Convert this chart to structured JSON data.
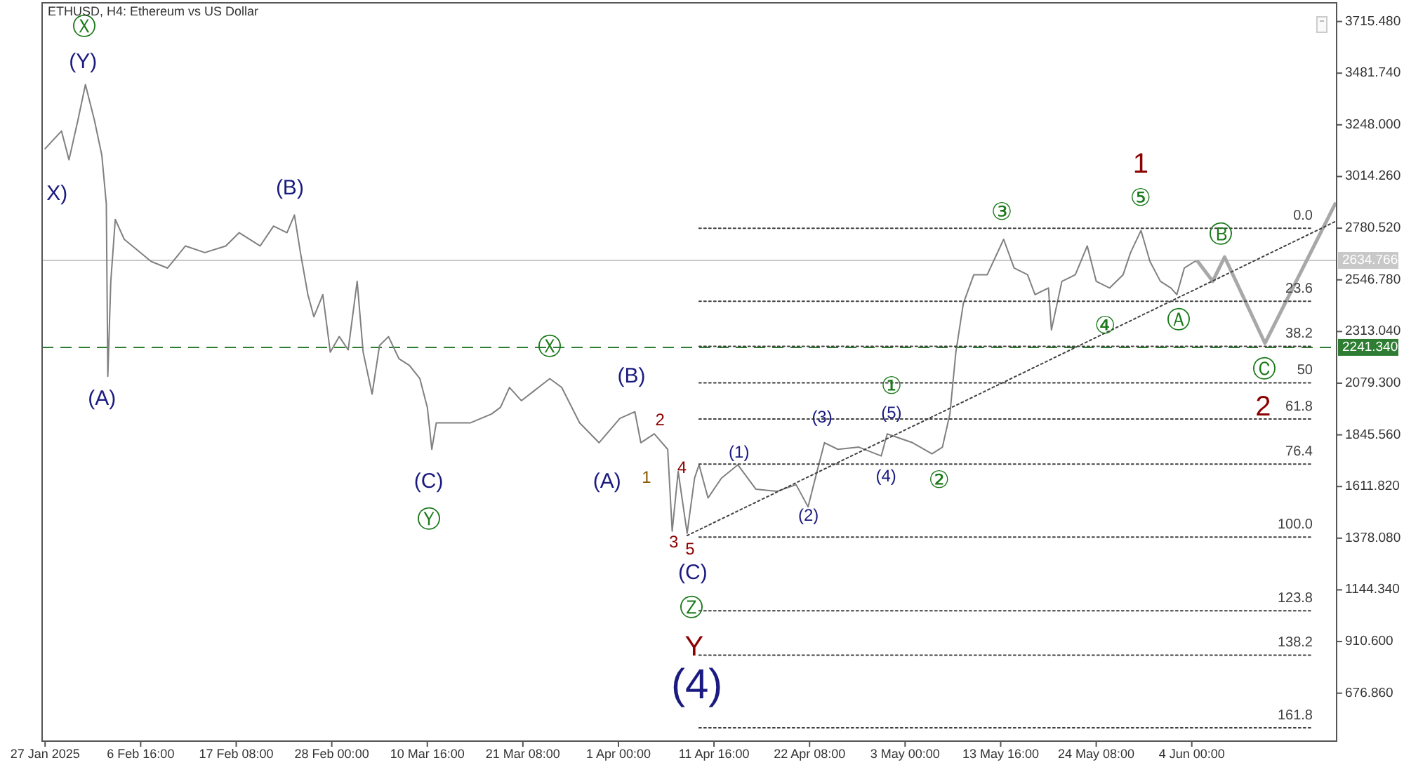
{
  "chart_data": {
    "type": "line",
    "title": "ETHUSD, H4:  Ethereum vs US Dollar",
    "xlim": [
      "2025-01-26T16:00",
      "2025-06-20T04:00"
    ],
    "xticks": [
      {
        "value": "2025-01-27T00:00",
        "label": "27 Jan 2025"
      },
      {
        "value": "2025-02-06T16:00",
        "label": "6 Feb 16:00"
      },
      {
        "value": "2025-02-17T08:00",
        "label": "17 Feb 08:00"
      },
      {
        "value": "2025-02-28T00:00",
        "label": "28 Feb 00:00"
      },
      {
        "value": "2025-03-10T16:00",
        "label": "10 Mar 16:00"
      },
      {
        "value": "2025-03-21T08:00",
        "label": "21 Mar 08:00"
      },
      {
        "value": "2025-04-01T00:00",
        "label": "1 Apr 00:00"
      },
      {
        "value": "2025-04-11T16:00",
        "label": "11 Apr 16:00"
      },
      {
        "value": "2025-04-22T08:00",
        "label": "22 Apr 08:00"
      },
      {
        "value": "2025-05-03T00:00",
        "label": "3 May 00:00"
      },
      {
        "value": "2025-05-13T16:00",
        "label": "13 May 16:00"
      },
      {
        "value": "2025-05-24T08:00",
        "label": "24 May 08:00"
      },
      {
        "value": "2025-06-04T00:00",
        "label": "4 Jun 00:00"
      }
    ],
    "ylim": [
      460,
      3800
    ],
    "yticks": [
      {
        "value": 676.86,
        "label": "676.860"
      },
      {
        "value": 910.6,
        "label": "910.600"
      },
      {
        "value": 1144.34,
        "label": "1144.340"
      },
      {
        "value": 1378.08,
        "label": "1378.080"
      },
      {
        "value": 1611.82,
        "label": "1611.820"
      },
      {
        "value": 1845.56,
        "label": "1845.560"
      },
      {
        "value": 2079.3,
        "label": "2079.300"
      },
      {
        "value": 2313.04,
        "label": "2313.040"
      },
      {
        "value": 2546.78,
        "label": "2546.780"
      },
      {
        "value": 2780.52,
        "label": "2780.520"
      },
      {
        "value": 3014.26,
        "label": "3014.260"
      },
      {
        "value": 3248,
        "label": "3248.000"
      },
      {
        "value": 3481.74,
        "label": "3481.740"
      },
      {
        "value": 3715.48,
        "label": "3715.480"
      }
    ],
    "ref_lines": [
      {
        "axis": "y",
        "value": 2634.766,
        "label": "2634.766",
        "color": "#c8c8c8",
        "line_style": "solid"
      },
      {
        "axis": "y",
        "value": 2241.34,
        "label": "2241.340",
        "color": "#2e7d32",
        "line_style": "dashed"
      }
    ],
    "series": [
      {
        "color": "#808080",
        "x": [
          "2025-01-27T00:00",
          "2025-01-28T20:00",
          "2025-01-29T16:00",
          "2025-01-30T16:00",
          "2025-01-31T12:00",
          "2025-02-01T12:00",
          "2025-02-02T08:00",
          "2025-02-02T20:00",
          "2025-02-03T00:00",
          "2025-02-03T08:00",
          "2025-02-03T20:00",
          "2025-02-04T20:00",
          "2025-02-06T08:00",
          "2025-02-07T20:00",
          "2025-02-09T16:00",
          "2025-02-11T16:00",
          "2025-02-13T20:00",
          "2025-02-16T04:00",
          "2025-02-17T16:00",
          "2025-02-20T00:00",
          "2025-02-21T12:00",
          "2025-02-23T00:00",
          "2025-02-23T20:00",
          "2025-02-24T12:00",
          "2025-02-25T08:00",
          "2025-02-26T00:00",
          "2025-02-27T00:00",
          "2025-02-27T20:00",
          "2025-02-28T20:00",
          "2025-03-01T20:00",
          "2025-03-02T20:00",
          "2025-03-03T12:00",
          "2025-03-04T12:00",
          "2025-03-05T08:00",
          "2025-03-06T08:00",
          "2025-03-07T12:00",
          "2025-03-08T16:00",
          "2025-03-09T20:00",
          "2025-03-10T16:00",
          "2025-03-11T04:00",
          "2025-03-11T16:00",
          "2025-03-13T04:00",
          "2025-03-15T12:00",
          "2025-03-17T20:00",
          "2025-03-18T20:00",
          "2025-03-19T20:00",
          "2025-03-21T04:00",
          "2025-03-24T08:00",
          "2025-03-25T16:00",
          "2025-03-27T16:00",
          "2025-03-29T20:00",
          "2025-04-01T04:00",
          "2025-04-02T20:00",
          "2025-04-03T12:00",
          "2025-04-05T00:00",
          "2025-04-06T12:00",
          "2025-04-07T00:00",
          "2025-04-07T16:00",
          "2025-04-08T16:00",
          "2025-04-09T12:00",
          "2025-04-10T00:00",
          "2025-04-11T00:00",
          "2025-04-12T12:00",
          "2025-04-14T08:00",
          "2025-04-16T08:00",
          "2025-04-18T16:00",
          "2025-04-20T20:00",
          "2025-04-22T04:00",
          "2025-04-23T04:00",
          "2025-04-24T00:00",
          "2025-04-25T12:00",
          "2025-04-27T20:00",
          "2025-04-30T08:00",
          "2025-05-01T00:00",
          "2025-05-03T20:00",
          "2025-05-06T00:00",
          "2025-05-07T04:00",
          "2025-05-08T00:00",
          "2025-05-08T16:00",
          "2025-05-09T12:00",
          "2025-05-10T16:00",
          "2025-05-12T04:00",
          "2025-05-14T00:00",
          "2025-05-15T04:00",
          "2025-05-16T16:00",
          "2025-05-17T12:00",
          "2025-05-19T00:00",
          "2025-05-19T08:00",
          "2025-05-20T12:00",
          "2025-05-22T00:00",
          "2025-05-23T08:00",
          "2025-05-24T08:00",
          "2025-05-25T20:00",
          "2025-05-27T08:00",
          "2025-05-28T04:00",
          "2025-05-29T08:00",
          "2025-05-30T08:00",
          "2025-05-31T12:00",
          "2025-06-01T16:00",
          "2025-06-02T08:00",
          "2025-06-03T04:00",
          "2025-06-04T08:00",
          "2025-06-04T16:00"
        ],
        "values": [
          3140,
          3220,
          3090,
          3270,
          3430,
          3270,
          3110,
          2890,
          2110,
          2540,
          2820,
          2730,
          2680,
          2630,
          2600,
          2700,
          2670,
          2700,
          2760,
          2700,
          2790,
          2760,
          2840,
          2670,
          2480,
          2380,
          2480,
          2220,
          2290,
          2230,
          2540,
          2220,
          2030,
          2250,
          2290,
          2190,
          2160,
          2100,
          1970,
          1780,
          1900,
          1900,
          1900,
          1940,
          1970,
          2060,
          2000,
          2100,
          2060,
          1900,
          1810,
          1920,
          1950,
          1810,
          1850,
          1780,
          1410,
          1680,
          1400,
          1650,
          1710,
          1560,
          1650,
          1710,
          1600,
          1590,
          1620,
          1520,
          1680,
          1810,
          1780,
          1790,
          1750,
          1850,
          1810,
          1760,
          1790,
          1940,
          2220,
          2440,
          2570,
          2570,
          2730,
          2600,
          2570,
          2480,
          2510,
          2320,
          2540,
          2570,
          2700,
          2540,
          2510,
          2570,
          2670,
          2770,
          2630,
          2540,
          2510,
          2480,
          2600,
          2630,
          2630
        ]
      },
      {
        "color": "#a8a8a8",
        "x": [
          "2025-06-04T16:00",
          "2025-06-06T08:00",
          "2025-06-07T16:00",
          "2025-06-12T04:00",
          "2025-06-20T00:00"
        ],
        "values": [
          2630,
          2540,
          2650,
          2260,
          2890
        ]
      },
      {
        "color": "#404040",
        "line_style": "dotted",
        "x": [
          "2025-04-08T16:00",
          "2025-06-20T00:00"
        ],
        "values": [
          1390,
          2810
        ]
      },
      {
        "name": "0.0",
        "color": "#404040",
        "line_style": "dotted",
        "x": [
          "2025-04-10T00:00",
          "2025-06-17T12:00"
        ],
        "values": [
          2780,
          2780
        ]
      },
      {
        "name": "23.6",
        "color": "#404040",
        "line_style": "dotted",
        "x": [
          "2025-04-10T00:00",
          "2025-06-17T12:00"
        ],
        "values": [
          2450,
          2450
        ]
      },
      {
        "name": "38.2",
        "color": "#404040",
        "line_style": "dotted",
        "x": [
          "2025-04-10T00:00",
          "2025-06-17T12:00"
        ],
        "values": [
          2246,
          2246
        ]
      },
      {
        "name": "50",
        "color": "#404040",
        "line_style": "dotted",
        "x": [
          "2025-04-10T00:00",
          "2025-06-17T12:00"
        ],
        "values": [
          2081,
          2081
        ]
      },
      {
        "name": "61.8",
        "color": "#404040",
        "line_style": "dotted",
        "x": [
          "2025-04-10T00:00",
          "2025-06-17T12:00"
        ],
        "values": [
          1917,
          1917
        ]
      },
      {
        "name": "76.4",
        "color": "#404040",
        "line_style": "dotted",
        "x": [
          "2025-04-10T00:00",
          "2025-06-17T12:00"
        ],
        "values": [
          1713,
          1713
        ]
      },
      {
        "name": "100.0",
        "color": "#404040",
        "line_style": "dotted",
        "x": [
          "2025-04-10T00:00",
          "2025-06-17T12:00"
        ],
        "values": [
          1383,
          1383
        ]
      },
      {
        "name": "123.8",
        "color": "#404040",
        "line_style": "dotted",
        "x": [
          "2025-04-10T00:00",
          "2025-06-17T12:00"
        ],
        "values": [
          1050,
          1050
        ]
      },
      {
        "name": "138.2",
        "color": "#404040",
        "line_style": "dotted",
        "x": [
          "2025-04-10T00:00",
          "2025-06-17T12:00"
        ],
        "values": [
          849,
          849
        ]
      },
      {
        "name": "161.8",
        "color": "#404040",
        "line_style": "dotted",
        "x": [
          "2025-04-10T00:00",
          "2025-06-17T12:00"
        ],
        "values": [
          520,
          520
        ]
      }
    ],
    "annotations": [
      "Ⓧ",
      "(Y)",
      "X)",
      "(A)",
      "(B)",
      "(C)",
      "Ⓨ",
      "Ⓧ",
      "(B)",
      "(A)",
      "1",
      "2",
      "4",
      "3",
      "5",
      "(C)",
      "Ⓩ",
      "Y",
      "(4)",
      "(1)",
      "(2)",
      "(3)",
      "(4)",
      "(5)",
      "①",
      "②",
      "③",
      "⑤",
      "1",
      "④",
      "Ⓐ",
      "Ⓑ",
      "Ⓒ",
      "2"
    ]
  }
}
